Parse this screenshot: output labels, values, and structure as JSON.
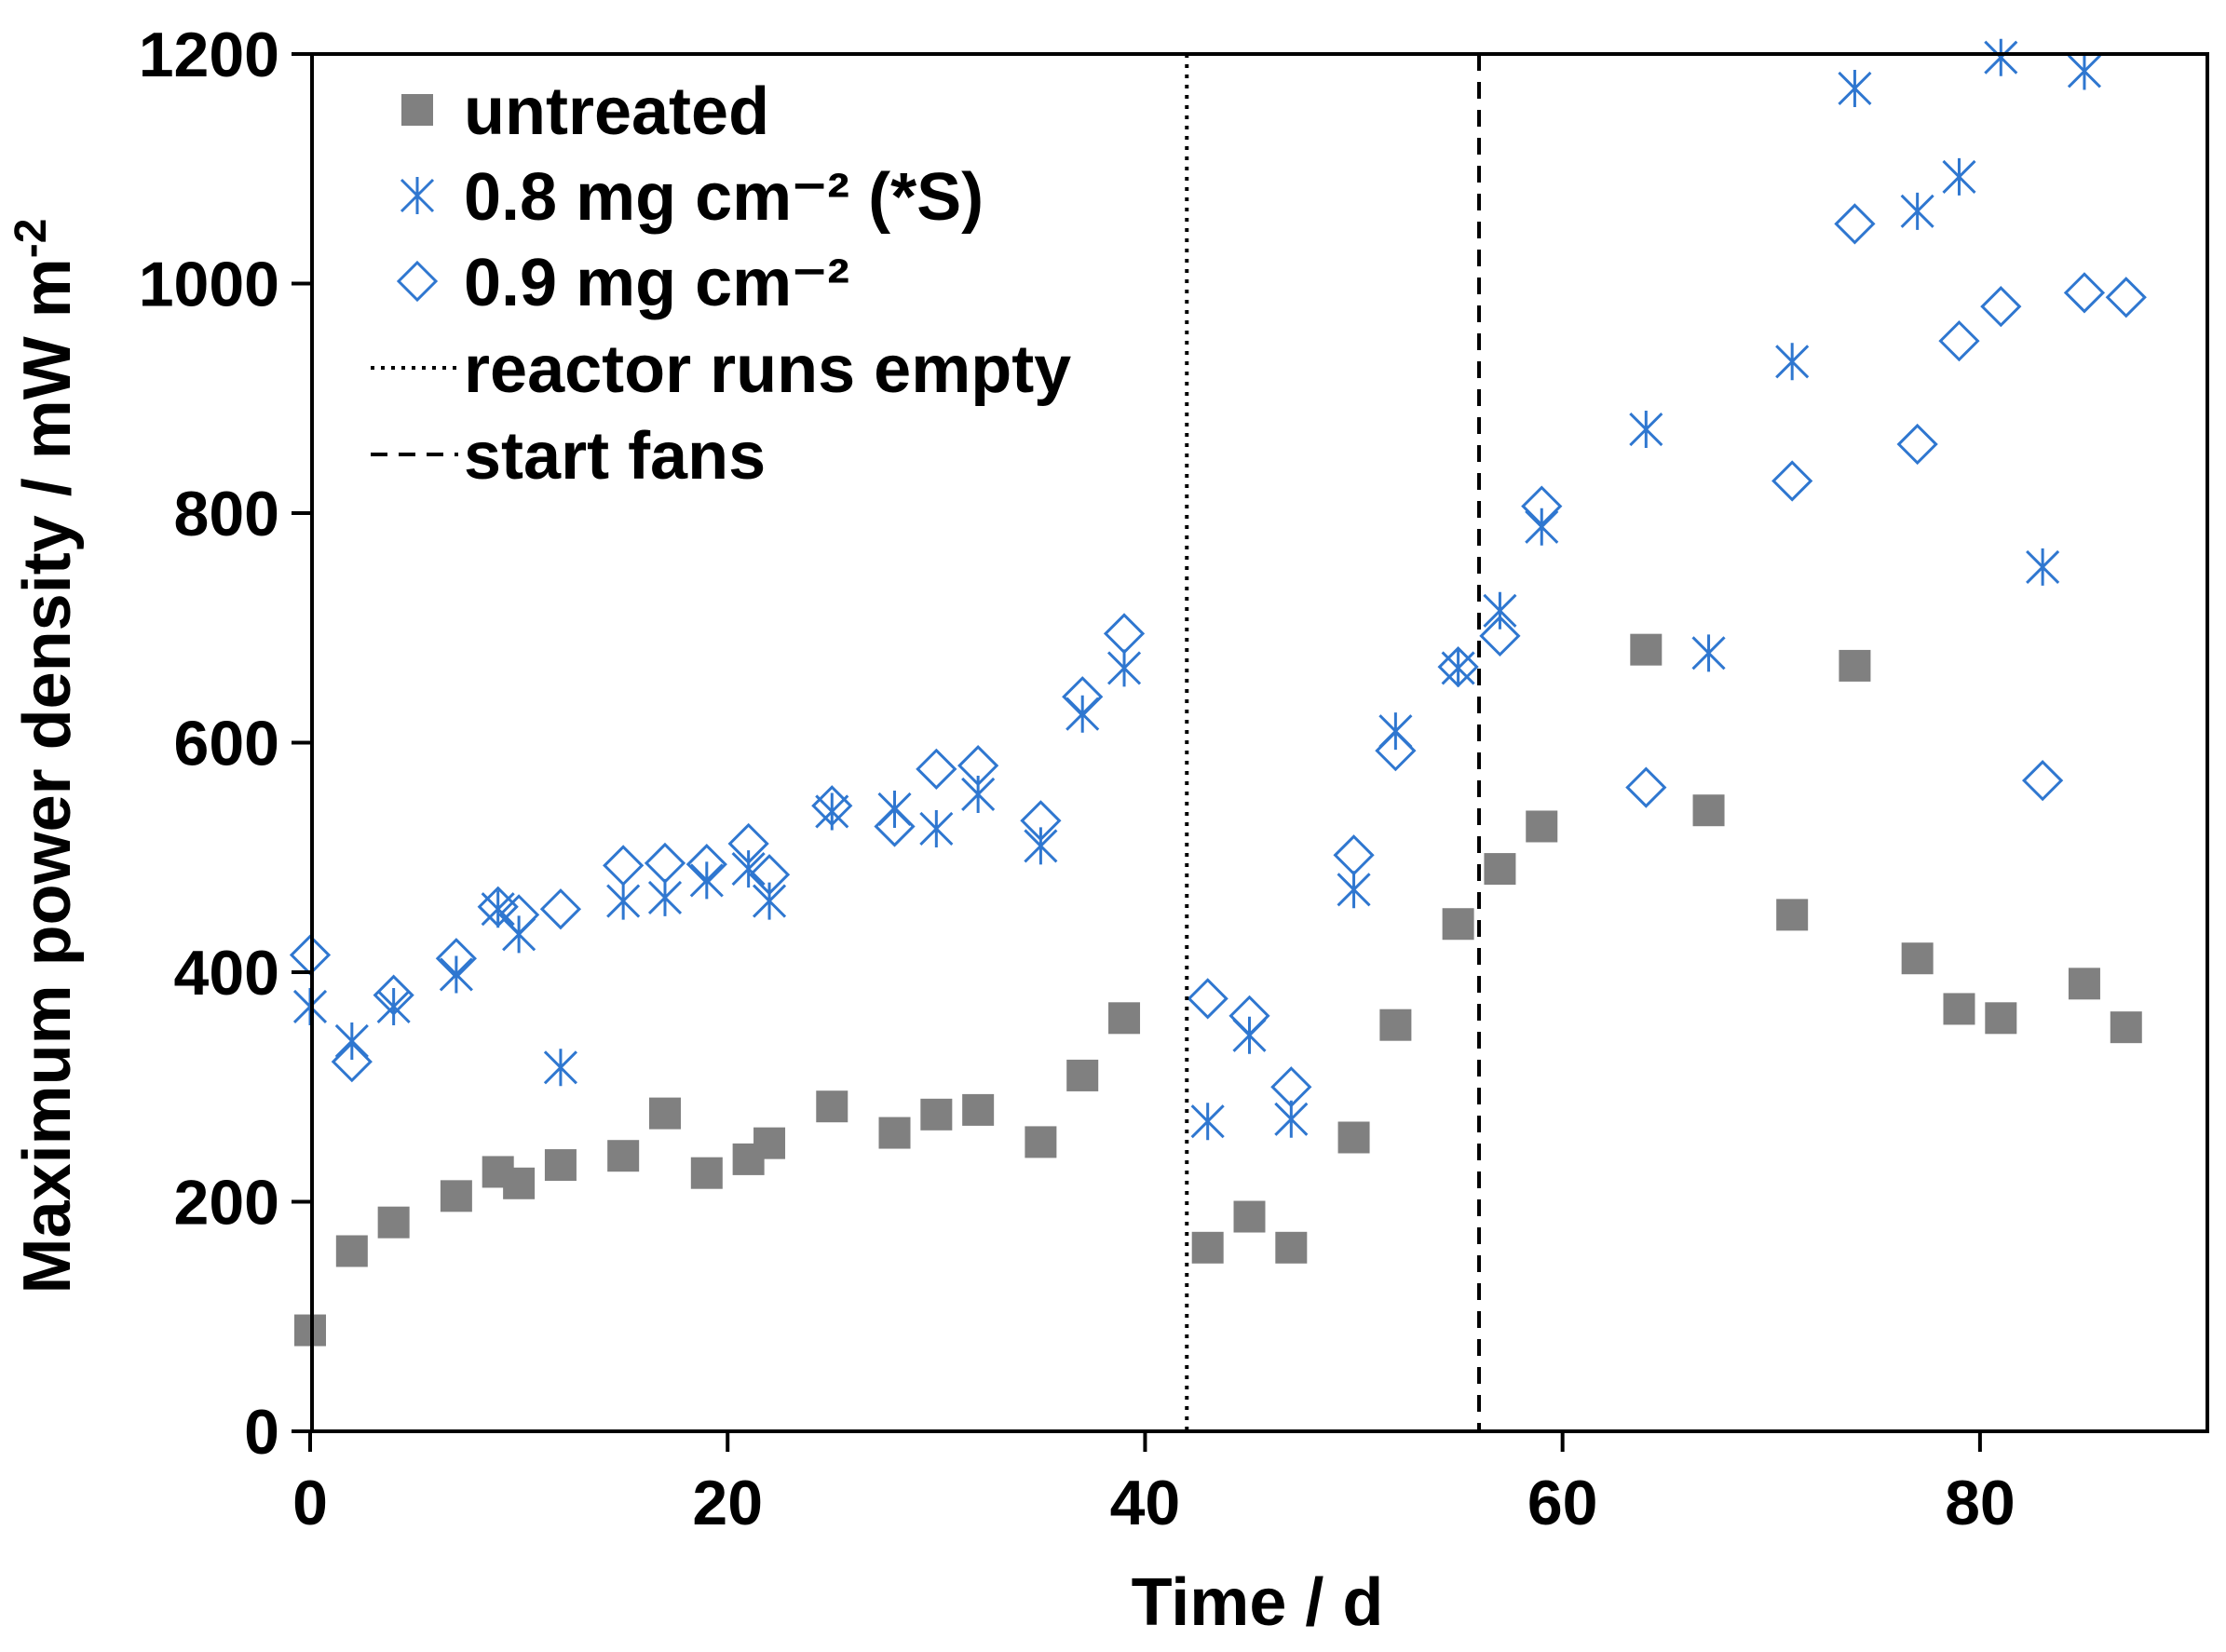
{
  "chart_data": {
    "type": "scatter",
    "xlabel": "Time / d",
    "ylabel": "Maximum power density / mW m",
    "ylabel_sup": "-2",
    "xlim": [
      0,
      90
    ],
    "ylim": [
      0,
      1200
    ],
    "xticks": [
      0,
      20,
      40,
      60,
      80
    ],
    "yticks": [
      0,
      200,
      400,
      600,
      800,
      1000,
      1200
    ],
    "grid": false,
    "legend_position": "top-left",
    "colors": {
      "untreated": "#808080",
      "blue": "#2f77d0",
      "line": "#000000"
    },
    "series": [
      {
        "name": "untreated",
        "marker": "square",
        "points": [
          [
            0,
            88
          ],
          [
            2,
            157
          ],
          [
            4,
            182
          ],
          [
            7,
            205
          ],
          [
            9,
            226
          ],
          [
            10,
            216
          ],
          [
            12,
            232
          ],
          [
            15,
            240
          ],
          [
            17,
            277
          ],
          [
            19,
            225
          ],
          [
            21,
            237
          ],
          [
            22,
            251
          ],
          [
            25,
            283
          ],
          [
            28,
            260
          ],
          [
            30,
            276
          ],
          [
            32,
            280
          ],
          [
            35,
            252
          ],
          [
            37,
            310
          ],
          [
            39,
            360
          ],
          [
            43,
            160
          ],
          [
            45,
            187
          ],
          [
            47,
            160
          ],
          [
            50,
            256
          ],
          [
            52,
            354
          ],
          [
            55,
            442
          ],
          [
            57,
            490
          ],
          [
            59,
            527
          ],
          [
            64,
            681
          ],
          [
            67,
            541
          ],
          [
            71,
            450
          ],
          [
            74,
            667
          ],
          [
            77,
            412
          ],
          [
            79,
            368
          ],
          [
            81,
            360
          ],
          [
            85,
            390
          ],
          [
            87,
            352
          ]
        ]
      },
      {
        "name": "0.8 mg cm⁻² (*S)",
        "marker": "asterisk",
        "points": [
          [
            0,
            370
          ],
          [
            2,
            340
          ],
          [
            4,
            370
          ],
          [
            7,
            398
          ],
          [
            9,
            455
          ],
          [
            10,
            433
          ],
          [
            12,
            317
          ],
          [
            15,
            462
          ],
          [
            17,
            465
          ],
          [
            19,
            480
          ],
          [
            21,
            490
          ],
          [
            22,
            462
          ],
          [
            25,
            540
          ],
          [
            28,
            542
          ],
          [
            30,
            525
          ],
          [
            32,
            555
          ],
          [
            35,
            510
          ],
          [
            37,
            625
          ],
          [
            39,
            665
          ],
          [
            43,
            270
          ],
          [
            45,
            345
          ],
          [
            47,
            272
          ],
          [
            50,
            472
          ],
          [
            52,
            610
          ],
          [
            55,
            665
          ],
          [
            57,
            715
          ],
          [
            59,
            788
          ],
          [
            64,
            873
          ],
          [
            67,
            678
          ],
          [
            71,
            932
          ],
          [
            74,
            1170
          ],
          [
            77,
            1063
          ],
          [
            79,
            1093
          ],
          [
            81,
            1197
          ],
          [
            83,
            753
          ],
          [
            85,
            1185
          ]
        ]
      },
      {
        "name": "0.9 mg cm⁻²",
        "marker": "diamond",
        "points": [
          [
            0,
            415
          ],
          [
            2,
            322
          ],
          [
            4,
            380
          ],
          [
            7,
            412
          ],
          [
            9,
            457
          ],
          [
            10,
            450
          ],
          [
            12,
            455
          ],
          [
            15,
            493
          ],
          [
            17,
            495
          ],
          [
            19,
            494
          ],
          [
            21,
            512
          ],
          [
            22,
            485
          ],
          [
            25,
            545
          ],
          [
            28,
            527
          ],
          [
            30,
            577
          ],
          [
            32,
            580
          ],
          [
            35,
            532
          ],
          [
            37,
            640
          ],
          [
            39,
            695
          ],
          [
            43,
            377
          ],
          [
            45,
            362
          ],
          [
            47,
            300
          ],
          [
            50,
            502
          ],
          [
            52,
            593
          ],
          [
            55,
            666
          ],
          [
            57,
            693
          ],
          [
            59,
            806
          ],
          [
            64,
            561
          ],
          [
            71,
            828
          ],
          [
            74,
            1052
          ],
          [
            77,
            860
          ],
          [
            79,
            950
          ],
          [
            81,
            980
          ],
          [
            83,
            567
          ],
          [
            85,
            992
          ],
          [
            87,
            988
          ]
        ]
      }
    ],
    "vlines": [
      {
        "name": "reactor runs empty",
        "x": 42,
        "style": "dotted"
      },
      {
        "name": "start fans",
        "x": 56,
        "style": "dashed"
      }
    ],
    "legend": [
      "untreated",
      "0.8 mg cm⁻² (*S)",
      "0.9 mg cm⁻²",
      "reactor runs empty",
      "start fans"
    ]
  }
}
